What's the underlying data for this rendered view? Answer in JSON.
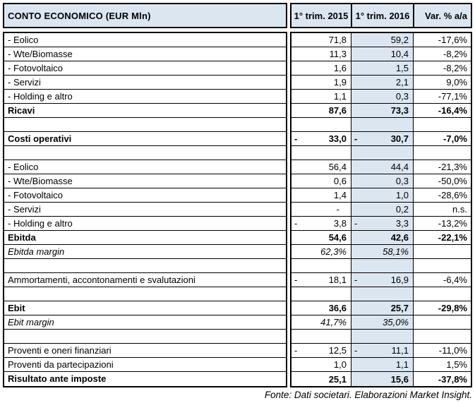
{
  "header": {
    "title": "CONTO ECONOMICO (EUR Mln)",
    "col_2015": "1° trim. 2015",
    "col_2016": "1° trim. 2016",
    "col_var": "Var. % a/a"
  },
  "colors": {
    "header_bg": "#dce6f1",
    "col_2016_bg": "#dce6f1",
    "border": "#000000"
  },
  "rows": [
    {
      "label": "- Eolico",
      "neg2015": "",
      "v2015": "71,8",
      "neg2016": "",
      "v2016": "59,2",
      "var": "-17,6%",
      "style": "normal"
    },
    {
      "label": "- Wte/Biomasse",
      "neg2015": "",
      "v2015": "11,3",
      "neg2016": "",
      "v2016": "10,4",
      "var": "-8,2%",
      "style": "normal"
    },
    {
      "label": "- Fotovoltaico",
      "neg2015": "",
      "v2015": "1,6",
      "neg2016": "",
      "v2016": "1,5",
      "var": "-8,2%",
      "style": "normal"
    },
    {
      "label": "- Servizi",
      "neg2015": "",
      "v2015": "1,9",
      "neg2016": "",
      "v2016": "2,1",
      "var": "9,0%",
      "style": "normal"
    },
    {
      "label": "- Holding e altro",
      "neg2015": "",
      "v2015": "1,1",
      "neg2016": "",
      "v2016": "0,3",
      "var": "-77,1%",
      "style": "normal"
    },
    {
      "label": "Ricavi",
      "neg2015": "",
      "v2015": "87,6",
      "neg2016": "",
      "v2016": "73,3",
      "var": "-16,4%",
      "style": "bold"
    },
    {
      "label": "",
      "neg2015": "",
      "v2015": "",
      "neg2016": "",
      "v2016": "",
      "var": "",
      "style": "empty"
    },
    {
      "label": "Costi operativi",
      "neg2015": "-",
      "v2015": "33,0",
      "neg2016": "-",
      "v2016": "30,7",
      "var": "-7,0%",
      "style": "bold"
    },
    {
      "label": "",
      "neg2015": "",
      "v2015": "",
      "neg2016": "",
      "v2016": "",
      "var": "",
      "style": "empty"
    },
    {
      "label": "- Eolico",
      "neg2015": "",
      "v2015": "56,4",
      "neg2016": "",
      "v2016": "44,4",
      "var": "-21,3%",
      "style": "normal"
    },
    {
      "label": "- Wte/Biomasse",
      "neg2015": "",
      "v2015": "0,6",
      "neg2016": "",
      "v2016": "0,3",
      "var": "-50,0%",
      "style": "normal"
    },
    {
      "label": "- Fotovoltaico",
      "neg2015": "",
      "v2015": "1,4",
      "neg2016": "",
      "v2016": "1,0",
      "var": "-28,6%",
      "style": "normal"
    },
    {
      "label": "- Servizi",
      "neg2015": "",
      "v2015": "-",
      "neg2016": "",
      "v2016": "0,2",
      "var": "n.s.",
      "style": "normal"
    },
    {
      "label": "- Holding e altro",
      "neg2015": "-",
      "v2015": "3,8",
      "neg2016": "-",
      "v2016": "3,3",
      "var": "-13,2%",
      "style": "normal"
    },
    {
      "label": "Ebitda",
      "neg2015": "",
      "v2015": "54,6",
      "neg2016": "",
      "v2016": "42,6",
      "var": "-22,1%",
      "style": "bold"
    },
    {
      "label": "Ebitda margin",
      "neg2015": "",
      "v2015": "62,3%",
      "neg2016": "",
      "v2016": "58,1%",
      "var": "",
      "style": "italic"
    },
    {
      "label": "",
      "neg2015": "",
      "v2015": "",
      "neg2016": "",
      "v2016": "",
      "var": "",
      "style": "empty"
    },
    {
      "label": "Ammortamenti, accontonamenti e svalutazioni",
      "neg2015": "-",
      "v2015": "18,1",
      "neg2016": "-",
      "v2016": "16,9",
      "var": "-6,4%",
      "style": "normal"
    },
    {
      "label": "",
      "neg2015": "",
      "v2015": "",
      "neg2016": "",
      "v2016": "",
      "var": "",
      "style": "empty"
    },
    {
      "label": "Ebit",
      "neg2015": "",
      "v2015": "36,6",
      "neg2016": "",
      "v2016": "25,7",
      "var": "-29,8%",
      "style": "bold"
    },
    {
      "label": "Ebit margin",
      "neg2015": "",
      "v2015": "41,7%",
      "neg2016": "",
      "v2016": "35,0%",
      "var": "",
      "style": "italic"
    },
    {
      "label": "",
      "neg2015": "",
      "v2015": "",
      "neg2016": "",
      "v2016": "",
      "var": "",
      "style": "empty"
    },
    {
      "label": "Proventi e oneri finanziari",
      "neg2015": "-",
      "v2015": "12,5",
      "neg2016": "-",
      "v2016": "11,1",
      "var": "-11,0%",
      "style": "normal"
    },
    {
      "label": "Proventi da partecipazioni",
      "neg2015": "",
      "v2015": "1,0",
      "neg2016": "",
      "v2016": "1,1",
      "var": "1,5%",
      "style": "normal"
    },
    {
      "label": "Risultato ante imposte",
      "neg2015": "",
      "v2015": "25,1",
      "neg2016": "",
      "v2016": "15,6",
      "var": "-37,8%",
      "style": "bold"
    }
  ],
  "footer": {
    "source": "Fonte: Dati societari. Elaborazioni Market Insight."
  }
}
